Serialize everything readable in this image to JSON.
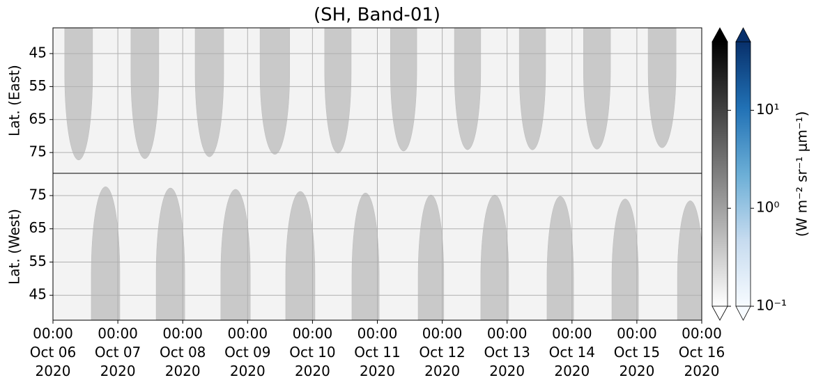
{
  "chart_data": {
    "type": "daylight-map",
    "title": "(SH, Band-01)",
    "xlim": [
      "2020-10-06T00:00",
      "2020-10-16T00:00"
    ],
    "xticks": [
      {
        "value": "2020-10-06T00:00",
        "label": [
          "00:00",
          "Oct 06",
          "2020"
        ]
      },
      {
        "value": "2020-10-07T00:00",
        "label": [
          "00:00",
          "Oct 07",
          "2020"
        ]
      },
      {
        "value": "2020-10-08T00:00",
        "label": [
          "00:00",
          "Oct 08",
          "2020"
        ]
      },
      {
        "value": "2020-10-09T00:00",
        "label": [
          "00:00",
          "Oct 09",
          "2020"
        ]
      },
      {
        "value": "2020-10-10T00:00",
        "label": [
          "00:00",
          "Oct 10",
          "2020"
        ]
      },
      {
        "value": "2020-10-11T00:00",
        "label": [
          "00:00",
          "Oct 11",
          "2020"
        ]
      },
      {
        "value": "2020-10-12T00:00",
        "label": [
          "00:00",
          "Oct 12",
          "2020"
        ]
      },
      {
        "value": "2020-10-13T00:00",
        "label": [
          "00:00",
          "Oct 13",
          "2020"
        ]
      },
      {
        "value": "2020-10-14T00:00",
        "label": [
          "00:00",
          "Oct 14",
          "2020"
        ]
      },
      {
        "value": "2020-10-15T00:00",
        "label": [
          "00:00",
          "Oct 15",
          "2020"
        ]
      },
      {
        "value": "2020-10-16T00:00",
        "label": [
          "00:00",
          "Oct 16",
          "2020"
        ]
      }
    ],
    "grid": true,
    "background_color": "#f3f3f3",
    "region_color": "#c9c9c9",
    "panels": [
      {
        "ylabel": "Lat. (East)",
        "ylim": [
          81.3,
          37.2
        ],
        "yticks": [
          45,
          55,
          65,
          75
        ],
        "regions": [
          {
            "x": [
              "2020-10-06T04:20",
              "2020-10-06T14:40"
            ],
            "lat": 77.3
          },
          {
            "x": [
              "2020-10-07T04:50",
              "2020-10-07T15:10"
            ],
            "lat": 76.9
          },
          {
            "x": [
              "2020-10-08T04:35",
              "2020-10-08T15:10"
            ],
            "lat": 76.3
          },
          {
            "x": [
              "2020-10-09T04:35",
              "2020-10-09T15:35"
            ],
            "lat": 75.6
          },
          {
            "x": [
              "2020-10-10T04:30",
              "2020-10-10T14:20"
            ],
            "lat": 75.2
          },
          {
            "x": [
              "2020-10-11T04:50",
              "2020-10-11T14:35"
            ],
            "lat": 74.6
          },
          {
            "x": [
              "2020-10-12T04:30",
              "2020-10-12T14:15"
            ],
            "lat": 74.2
          },
          {
            "x": [
              "2020-10-13T04:30",
              "2020-10-13T14:15"
            ],
            "lat": 74.2
          },
          {
            "x": [
              "2020-10-14T04:15",
              "2020-10-14T14:15"
            ],
            "lat": 74.0
          },
          {
            "x": [
              "2020-10-15T04:10",
              "2020-10-15T14:30"
            ],
            "lat": 73.6
          }
        ]
      },
      {
        "ylabel": "Lat. (West)",
        "ylim": [
          37.5,
          81.7
        ],
        "yticks": [
          45,
          55,
          65,
          75
        ],
        "regions": [
          {
            "x": [
              "2020-10-06T14:10",
              "2020-10-07T00:45"
            ],
            "lat": 77.7
          },
          {
            "x": [
              "2020-10-07T14:10",
              "2020-10-08T00:45"
            ],
            "lat": 77.3
          },
          {
            "x": [
              "2020-10-08T14:05",
              "2020-10-09T01:00"
            ],
            "lat": 76.9
          },
          {
            "x": [
              "2020-10-09T14:05",
              "2020-10-10T00:55"
            ],
            "lat": 76.3
          },
          {
            "x": [
              "2020-10-10T14:35",
              "2020-10-11T00:40"
            ],
            "lat": 75.8
          },
          {
            "x": [
              "2020-10-11T15:05",
              "2020-10-12T00:35"
            ],
            "lat": 75.2
          },
          {
            "x": [
              "2020-10-12T14:15",
              "2020-10-13T00:35"
            ],
            "lat": 75.2
          },
          {
            "x": [
              "2020-10-13T14:45",
              "2020-10-14T00:35"
            ],
            "lat": 74.8
          },
          {
            "x": [
              "2020-10-14T14:45",
              "2020-10-15T00:35"
            ],
            "lat": 74.0
          },
          {
            "x": [
              "2020-10-15T15:00",
              "2020-10-16T00:30"
            ],
            "lat": 73.5
          }
        ]
      }
    ],
    "colorbar": {
      "label": "(W m⁻² sr⁻¹ μm⁻¹)",
      "scale": "log",
      "lim": [
        0.1,
        50
      ],
      "ticks": [
        {
          "value": 0.1,
          "label": "10⁻¹"
        },
        {
          "value": 1,
          "label": "10⁰"
        },
        {
          "value": 10,
          "label": "10¹"
        }
      ],
      "colormaps": [
        [
          "#ffffff",
          "#000000"
        ],
        [
          "#f7fbff",
          "#c6dbef",
          "#6baed6",
          "#2171b5",
          "#08306b"
        ]
      ]
    }
  }
}
